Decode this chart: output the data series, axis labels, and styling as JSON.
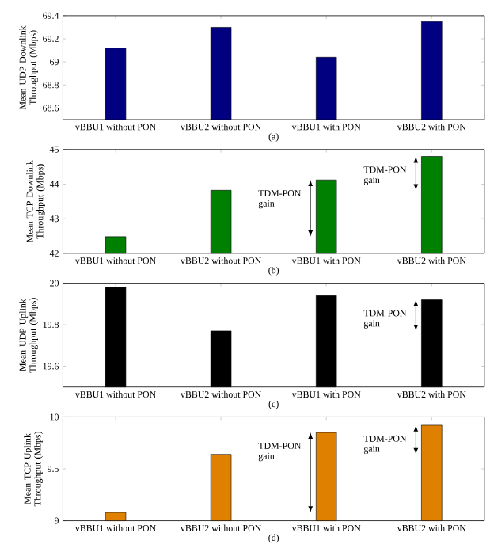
{
  "chart_data": [
    {
      "type": "bar",
      "ylabel": "Mean UDP Downlink Throughput (Mbps)",
      "xlabel": "(a)",
      "categories": [
        "vBBU1 without PON",
        "vBBU2 without PON",
        "vBBU1 with PON",
        "vBBU2 with PON"
      ],
      "values": [
        69.12,
        69.3,
        69.04,
        69.35
      ],
      "color": "#000080",
      "ylim": [
        68.5,
        69.4
      ],
      "yticks": [
        68.6,
        68.8,
        69,
        69.2,
        69.4
      ]
    },
    {
      "type": "bar",
      "ylabel": "Mean TCP Downlink Throughput (Mbps)",
      "xlabel": "(b)",
      "categories": [
        "vBBU1 without PON",
        "vBBU2 without PON",
        "vBBU1 with PON",
        "vBBU2 with PON"
      ],
      "values": [
        42.48,
        43.82,
        44.12,
        44.8
      ],
      "color": "#008000",
      "ylim": [
        42,
        45
      ],
      "yticks": [
        42,
        43,
        44,
        45
      ],
      "annotations": [
        {
          "text": "TDM-PON gain",
          "x": "vBBU1 with PON",
          "y": 44.12
        },
        {
          "text": "TDM-PON gain",
          "x": "vBBU2 with PON",
          "y": 44.8
        }
      ]
    },
    {
      "type": "bar",
      "ylabel": "Mean UDP Uplink Throughput (Mbps)",
      "xlabel": "(c)",
      "categories": [
        "vBBU1 without PON",
        "vBBU2 without PON",
        "vBBU1 with PON",
        "vBBU2 with PON"
      ],
      "values": [
        19.98,
        19.77,
        19.94,
        19.92
      ],
      "color": "#000000",
      "ylim": [
        19.5,
        20
      ],
      "yticks": [
        19.6,
        19.8,
        20
      ],
      "annotations": [
        {
          "text": "TDM-PON gain",
          "x": "vBBU2 with PON",
          "y": 19.92
        }
      ]
    },
    {
      "type": "bar",
      "ylabel": "Mean TCP Uplink Throughput (Mbps)",
      "xlabel": "(d)",
      "categories": [
        "vBBU1 without PON",
        "vBBU2 without PON",
        "vBBU1 with PON",
        "vBBU2 with PON"
      ],
      "values": [
        9.08,
        9.64,
        9.85,
        9.92
      ],
      "color": "#e08000",
      "ylim": [
        9,
        10
      ],
      "yticks": [
        9,
        9.5,
        10
      ],
      "annotations": [
        {
          "text": "TDM-PON gain",
          "x": "vBBU1 with PON",
          "y": 9.85
        },
        {
          "text": "TDM-PON gain",
          "x": "vBBU2 with PON",
          "y": 9.92
        }
      ]
    }
  ]
}
